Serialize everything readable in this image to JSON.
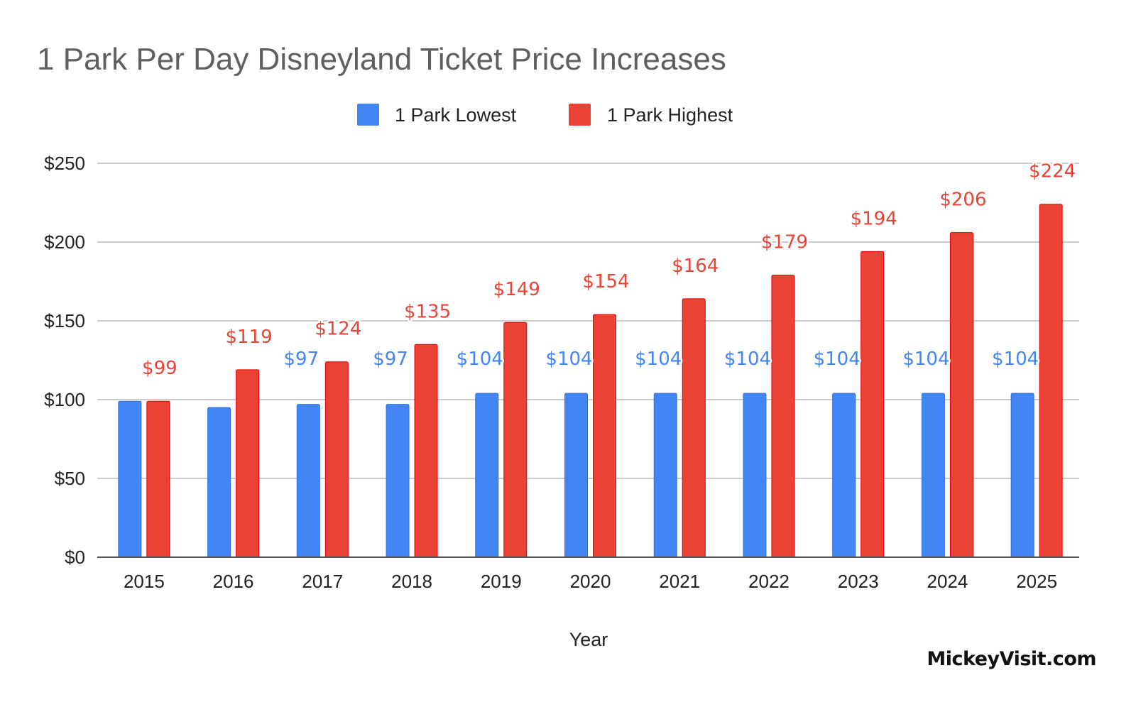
{
  "chart_data": {
    "type": "bar",
    "title": "1 Park Per Day Disneyland Ticket Price Increases",
    "xlabel": "Year",
    "ylabel": "",
    "ylim": [
      0,
      250
    ],
    "yticks": [
      0,
      50,
      100,
      150,
      200,
      250
    ],
    "ytick_labels": [
      "$0",
      "$50",
      "$100",
      "$150",
      "$200",
      "$250"
    ],
    "grid": true,
    "legend_position": "top-center",
    "categories": [
      "2015",
      "2016",
      "2017",
      "2018",
      "2019",
      "2020",
      "2021",
      "2022",
      "2023",
      "2024",
      "2025"
    ],
    "series": [
      {
        "name": "1 Park Lowest",
        "color": "#4285f4",
        "values": [
          99,
          95,
          97,
          97,
          104,
          104,
          104,
          104,
          104,
          104,
          104
        ],
        "data_labels": [
          null,
          null,
          "$97",
          "$97",
          "$104",
          "$104",
          "$104",
          "$104",
          "$104",
          "$104",
          "$104"
        ]
      },
      {
        "name": "1 Park Highest",
        "color": "#ea4335",
        "values": [
          99,
          119,
          124,
          135,
          149,
          154,
          164,
          179,
          194,
          206,
          224
        ],
        "data_labels": [
          "$99",
          "$119",
          "$124",
          "$135",
          "$149",
          "$154",
          "$164",
          "$179",
          "$194",
          "$206",
          "$224"
        ]
      }
    ]
  },
  "watermark": "MickeyVisit.com"
}
